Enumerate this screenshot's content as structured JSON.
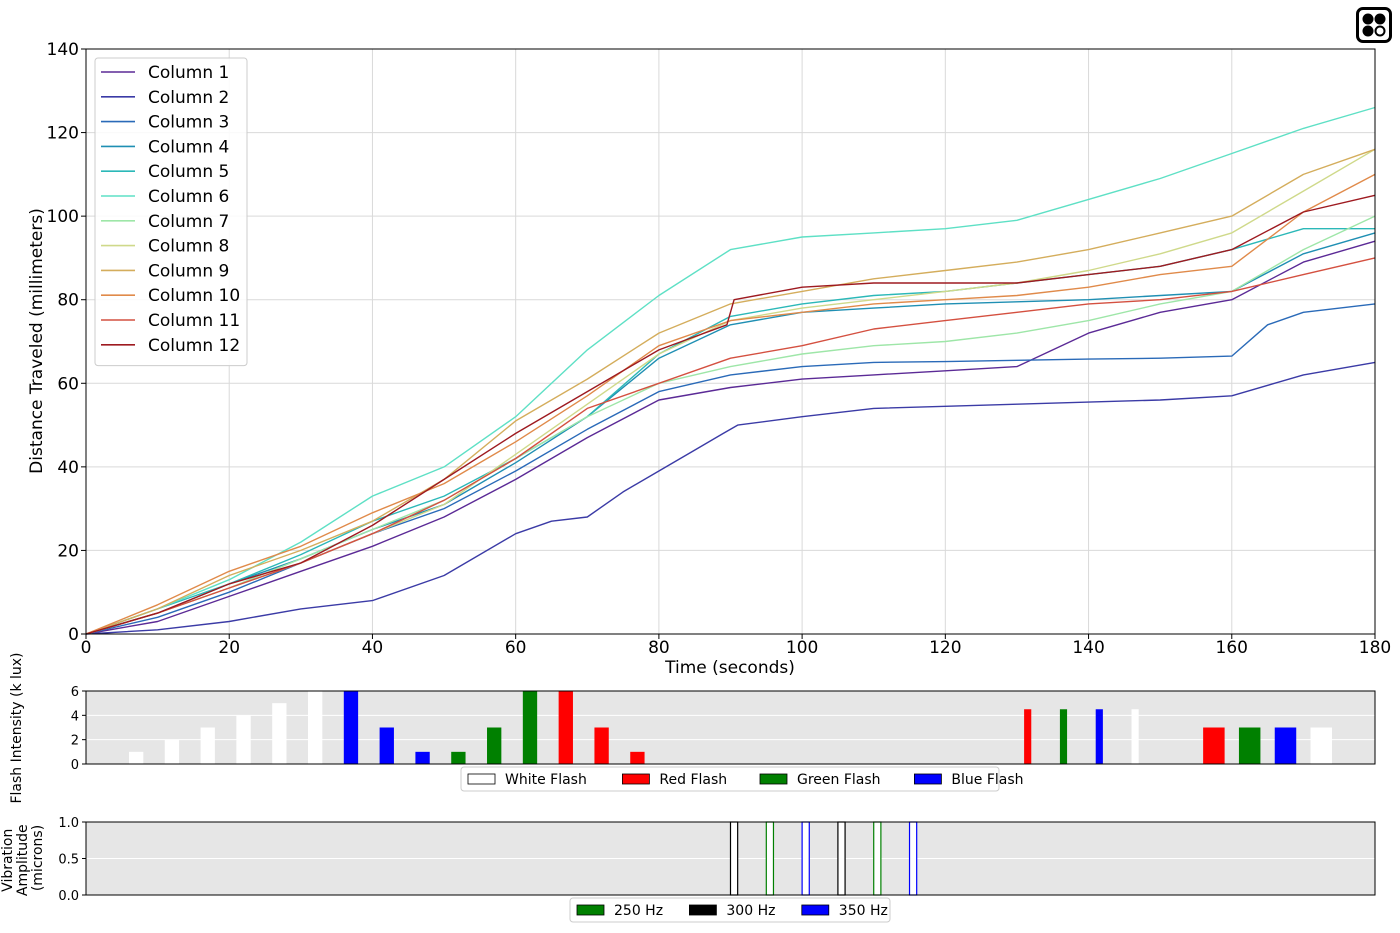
{
  "chart_data": [
    {
      "type": "line",
      "title": "",
      "xlabel": "Time (seconds)",
      "ylabel": "Distance Traveled (millimeters)",
      "xlim": [
        0,
        180
      ],
      "ylim": [
        0,
        140
      ],
      "xticks": [
        "0",
        "20",
        "40",
        "60",
        "80",
        "100",
        "120",
        "140",
        "160",
        "180"
      ],
      "yticks": [
        "0",
        "20",
        "40",
        "60",
        "80",
        "100",
        "120",
        "140"
      ],
      "grid": true,
      "legend_position": "top-left",
      "series": [
        {
          "name": "Column 1",
          "color": "#5b2a96",
          "x": [
            0,
            10,
            20,
            30,
            40,
            50,
            60,
            70,
            80,
            90,
            100,
            110,
            120,
            130,
            140,
            150,
            160,
            170,
            180
          ],
          "y": [
            0,
            3,
            9,
            15,
            21,
            28,
            37,
            47,
            56,
            59,
            61,
            62,
            63,
            64,
            72,
            77,
            80,
            89,
            94
          ]
        },
        {
          "name": "Column 2",
          "color": "#3b3ba6",
          "x": [
            0,
            10,
            20,
            30,
            40,
            50,
            60,
            65,
            70,
            75,
            80,
            85,
            89,
            91,
            100,
            110,
            120,
            130,
            140,
            150,
            160,
            170,
            180
          ],
          "y": [
            0,
            1,
            3,
            6,
            8,
            14,
            24,
            27,
            28,
            34,
            39,
            44,
            48,
            50,
            52,
            54,
            54.5,
            55,
            55.5,
            56,
            57,
            62,
            65
          ]
        },
        {
          "name": "Column 3",
          "color": "#2a6ab8",
          "x": [
            0,
            10,
            20,
            30,
            40,
            50,
            60,
            70,
            80,
            90,
            100,
            110,
            120,
            130,
            140,
            150,
            160,
            165,
            170,
            180
          ],
          "y": [
            0,
            4,
            10,
            17,
            24,
            30,
            39,
            49,
            58,
            62,
            64,
            65,
            65.2,
            65.5,
            65.8,
            66,
            66.5,
            74,
            77,
            79
          ]
        },
        {
          "name": "Column 4",
          "color": "#1f8fb3",
          "x": [
            0,
            10,
            20,
            30,
            40,
            50,
            60,
            70,
            80,
            90,
            100,
            110,
            120,
            130,
            140,
            150,
            160,
            170,
            180
          ],
          "y": [
            0,
            5,
            12,
            18,
            25,
            31,
            41,
            52,
            66,
            74,
            77,
            78,
            79,
            79.5,
            80,
            81,
            82,
            91,
            96
          ]
        },
        {
          "name": "Column 5",
          "color": "#2bb8b8",
          "x": [
            0,
            10,
            20,
            30,
            40,
            50,
            60,
            70,
            80,
            90,
            100,
            110,
            120,
            130,
            140,
            150,
            160,
            170,
            180
          ],
          "y": [
            0,
            6,
            12,
            19,
            27,
            33,
            42,
            52,
            67,
            76,
            79,
            81,
            82,
            84,
            86,
            88,
            92,
            97,
            97
          ]
        },
        {
          "name": "Column 6",
          "color": "#5ee0c5",
          "x": [
            0,
            10,
            20,
            30,
            40,
            50,
            60,
            70,
            80,
            90,
            100,
            110,
            120,
            130,
            140,
            150,
            160,
            170,
            180
          ],
          "y": [
            0,
            6,
            13,
            22,
            33,
            40,
            52,
            68,
            81,
            92,
            95,
            96,
            97,
            99,
            104,
            109,
            115,
            121,
            126
          ]
        },
        {
          "name": "Column 7",
          "color": "#9ee6a8",
          "x": [
            0,
            10,
            20,
            30,
            40,
            50,
            60,
            70,
            80,
            90,
            100,
            110,
            120,
            130,
            140,
            150,
            160,
            170,
            180
          ],
          "y": [
            0,
            5,
            11,
            18,
            25,
            32,
            42,
            52,
            60,
            64,
            67,
            69,
            70,
            72,
            75,
            79,
            82,
            92,
            100
          ]
        },
        {
          "name": "Column 8",
          "color": "#cfd98a",
          "x": [
            0,
            10,
            20,
            30,
            40,
            50,
            60,
            70,
            80,
            90,
            100,
            110,
            120,
            130,
            140,
            150,
            160,
            170,
            180
          ],
          "y": [
            0,
            5,
            11,
            17,
            24,
            31,
            43,
            55,
            67,
            75,
            78,
            80,
            82,
            84,
            87,
            91,
            96,
            106,
            116
          ]
        },
        {
          "name": "Column 9",
          "color": "#d4ad5c",
          "x": [
            0,
            10,
            20,
            30,
            40,
            50,
            60,
            70,
            80,
            90,
            100,
            110,
            120,
            130,
            140,
            150,
            160,
            170,
            180
          ],
          "y": [
            0,
            6,
            14,
            20,
            27,
            37,
            51,
            61,
            72,
            79,
            82,
            85,
            87,
            89,
            92,
            96,
            100,
            110,
            116
          ]
        },
        {
          "name": "Column 10",
          "color": "#e08a4a",
          "x": [
            0,
            10,
            20,
            30,
            40,
            50,
            60,
            70,
            80,
            90,
            100,
            110,
            120,
            130,
            140,
            150,
            160,
            170,
            180
          ],
          "y": [
            0,
            7,
            15,
            21,
            29,
            36,
            46,
            57,
            69,
            75,
            77,
            79,
            80,
            81,
            83,
            86,
            88,
            101,
            110
          ]
        },
        {
          "name": "Column 11",
          "color": "#d45040",
          "x": [
            0,
            10,
            20,
            30,
            40,
            50,
            60,
            70,
            80,
            90,
            100,
            110,
            120,
            130,
            140,
            150,
            160,
            170,
            180
          ],
          "y": [
            0,
            5,
            11,
            17,
            24,
            32,
            42,
            54,
            60,
            66,
            69,
            73,
            75,
            77,
            79,
            80,
            82,
            86,
            90
          ]
        },
        {
          "name": "Column 12",
          "color": "#9e1a20",
          "x": [
            0,
            10,
            20,
            30,
            40,
            50,
            60,
            70,
            80,
            89.5,
            90.5,
            100,
            110,
            120,
            130,
            140,
            150,
            160,
            170,
            180
          ],
          "y": [
            0,
            5,
            12,
            17,
            26,
            37,
            48,
            58,
            68,
            74,
            80,
            83,
            84,
            84,
            84,
            86,
            88,
            92,
            101,
            105
          ]
        }
      ]
    },
    {
      "type": "bar",
      "title": "",
      "xlabel": "",
      "ylabel": "Flash Intensity (k lux)",
      "xlim": [
        0,
        180
      ],
      "ylim": [
        0,
        6
      ],
      "yticks": [
        "0",
        "2",
        "4",
        "6"
      ],
      "grid": true,
      "background": "#e6e6e6",
      "legend_position": "bottom-center",
      "legend": [
        {
          "name": "White Flash",
          "color": "#ffffff"
        },
        {
          "name": "Red Flash",
          "color": "#ff0000"
        },
        {
          "name": "Green Flash",
          "color": "#008000"
        },
        {
          "name": "Blue Flash",
          "color": "#0000ff"
        }
      ],
      "bars": [
        {
          "x": 6,
          "width": 2,
          "value": 1,
          "series": "White Flash"
        },
        {
          "x": 11,
          "width": 2,
          "value": 2,
          "series": "White Flash"
        },
        {
          "x": 16,
          "width": 2,
          "value": 3,
          "series": "White Flash"
        },
        {
          "x": 21,
          "width": 2,
          "value": 4,
          "series": "White Flash"
        },
        {
          "x": 26,
          "width": 2,
          "value": 5,
          "series": "White Flash"
        },
        {
          "x": 31,
          "width": 2,
          "value": 6,
          "series": "White Flash"
        },
        {
          "x": 36,
          "width": 2,
          "value": 6,
          "series": "Blue Flash"
        },
        {
          "x": 41,
          "width": 2,
          "value": 3,
          "series": "Blue Flash"
        },
        {
          "x": 46,
          "width": 2,
          "value": 1,
          "series": "Blue Flash"
        },
        {
          "x": 51,
          "width": 2,
          "value": 1,
          "series": "Green Flash"
        },
        {
          "x": 56,
          "width": 2,
          "value": 3,
          "series": "Green Flash"
        },
        {
          "x": 61,
          "width": 2,
          "value": 6,
          "series": "Green Flash"
        },
        {
          "x": 66,
          "width": 2,
          "value": 6,
          "series": "Red Flash"
        },
        {
          "x": 71,
          "width": 2,
          "value": 3,
          "series": "Red Flash"
        },
        {
          "x": 76,
          "width": 2,
          "value": 1,
          "series": "Red Flash"
        },
        {
          "x": 131,
          "width": 1,
          "value": 4.5,
          "series": "Red Flash"
        },
        {
          "x": 136,
          "width": 1,
          "value": 4.5,
          "series": "Green Flash"
        },
        {
          "x": 141,
          "width": 1,
          "value": 4.5,
          "series": "Blue Flash"
        },
        {
          "x": 146,
          "width": 1,
          "value": 4.5,
          "series": "White Flash"
        },
        {
          "x": 156,
          "width": 3,
          "value": 3,
          "series": "Red Flash"
        },
        {
          "x": 161,
          "width": 3,
          "value": 3,
          "series": "Green Flash"
        },
        {
          "x": 166,
          "width": 3,
          "value": 3,
          "series": "Blue Flash"
        },
        {
          "x": 171,
          "width": 3,
          "value": 3,
          "series": "White Flash"
        }
      ]
    },
    {
      "type": "bar",
      "title": "",
      "xlabel": "",
      "ylabel": "Vibration Amplitude (microns)",
      "xlim": [
        0,
        180
      ],
      "ylim": [
        0,
        1
      ],
      "yticks": [
        "0.0",
        "0.5",
        "1.0"
      ],
      "grid": true,
      "background": "#e6e6e6",
      "legend_position": "bottom-center",
      "legend": [
        {
          "name": "250 Hz",
          "color": "#008000"
        },
        {
          "name": "300 Hz",
          "color": "#000000"
        },
        {
          "name": "350 Hz",
          "color": "#0000ff"
        }
      ],
      "bars": [
        {
          "x": 90,
          "width": 1,
          "value": 1,
          "series": "300 Hz"
        },
        {
          "x": 95,
          "width": 1,
          "value": 1,
          "series": "250 Hz"
        },
        {
          "x": 100,
          "width": 1,
          "value": 1,
          "series": "350 Hz"
        },
        {
          "x": 105,
          "width": 1,
          "value": 1,
          "series": "300 Hz"
        },
        {
          "x": 110,
          "width": 1,
          "value": 1,
          "series": "250 Hz"
        },
        {
          "x": 115,
          "width": 1,
          "value": 1,
          "series": "350 Hz"
        }
      ]
    }
  ]
}
